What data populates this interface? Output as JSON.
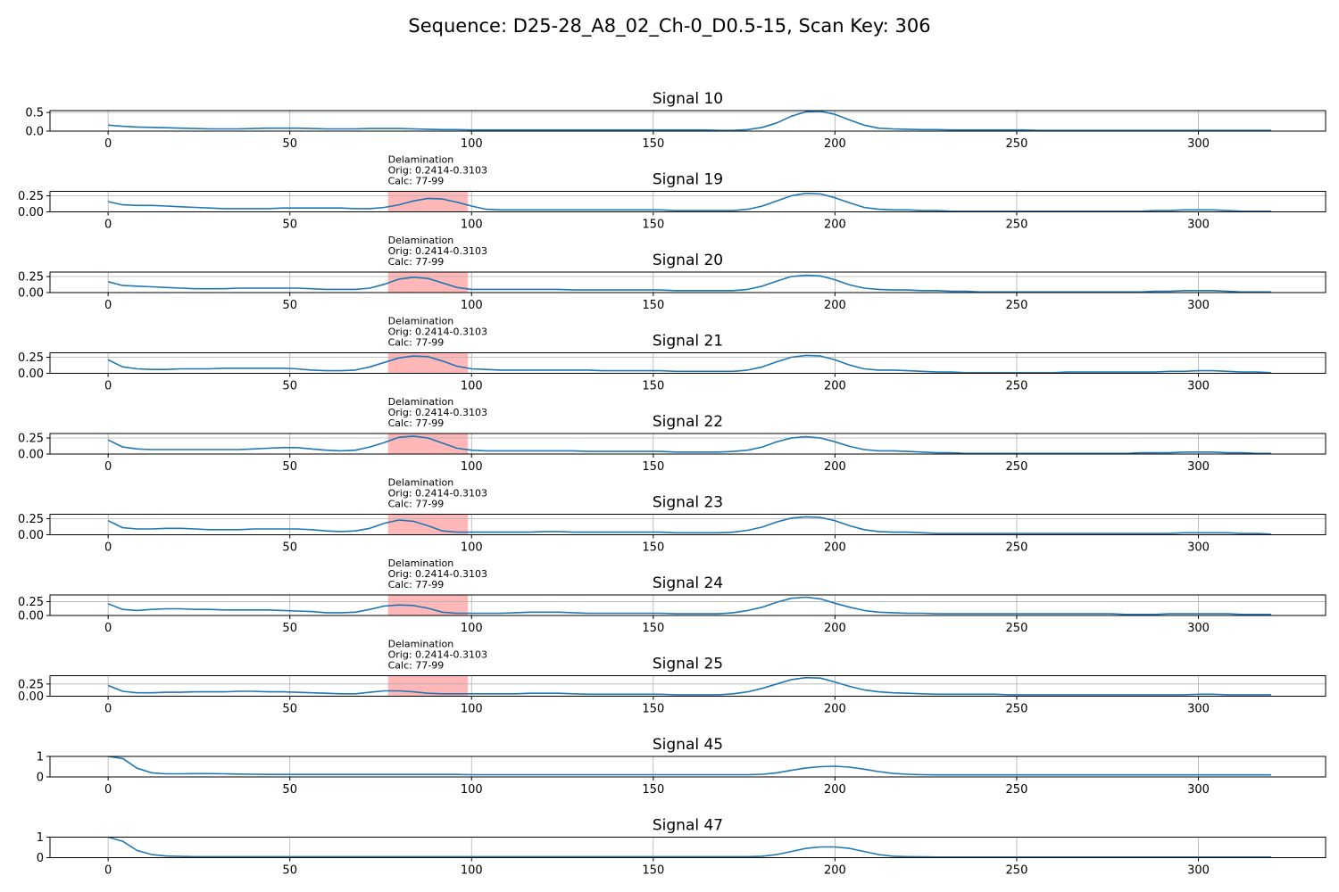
{
  "figure": {
    "title": "Sequence: D25-28_A8_02_Ch-0_D0.5-15, Scan Key: 306"
  },
  "colors": {
    "line": "#1f77b4",
    "highlight": "#ff9999",
    "grid": "#b0b0b0"
  },
  "chart_data": {
    "type": "line",
    "grid": true,
    "xlim": [
      -16,
      335
    ],
    "xticks": [
      0,
      50,
      100,
      150,
      200,
      250,
      300
    ],
    "x_sample_step": 4,
    "annotation": {
      "label_lines": [
        "Delamination",
        "Orig: 0.2414-0.3103",
        "Calc: 77-99"
      ],
      "x_range": [
        77,
        99
      ]
    },
    "subplots": [
      {
        "title": "Signal 10",
        "ylim": [
          0,
          0.55
        ],
        "yticks": [
          "0.5",
          "0.0"
        ],
        "ytick_values": [
          0.5,
          0
        ],
        "has_annotation": false,
        "y": [
          0.16,
          0.13,
          0.11,
          0.1,
          0.09,
          0.08,
          0.07,
          0.06,
          0.06,
          0.06,
          0.07,
          0.08,
          0.08,
          0.08,
          0.07,
          0.06,
          0.06,
          0.06,
          0.07,
          0.07,
          0.07,
          0.06,
          0.05,
          0.04,
          0.04,
          0.03,
          0.03,
          0.03,
          0.03,
          0.03,
          0.03,
          0.03,
          0.03,
          0.03,
          0.03,
          0.03,
          0.03,
          0.03,
          0.03,
          0.03,
          0.03,
          0.03,
          0.02,
          0.02,
          0.04,
          0.1,
          0.22,
          0.4,
          0.52,
          0.53,
          0.45,
          0.3,
          0.16,
          0.08,
          0.06,
          0.05,
          0.04,
          0.04,
          0.03,
          0.03,
          0.03,
          0.03,
          0.03,
          0.03,
          0.02,
          0.02,
          0.02,
          0.02,
          0.02,
          0.02,
          0.02,
          0.02,
          0.02,
          0.02,
          0.02,
          0.02,
          0.02,
          0.02,
          0.02,
          0.02,
          0.02
        ]
      },
      {
        "title": "Signal 19",
        "ylim": [
          0,
          0.32
        ],
        "yticks": [
          "0.25",
          "0.00"
        ],
        "ytick_values": [
          0.25,
          0
        ],
        "has_annotation": true,
        "y": [
          0.16,
          0.11,
          0.1,
          0.1,
          0.09,
          0.08,
          0.07,
          0.06,
          0.05,
          0.05,
          0.05,
          0.05,
          0.06,
          0.06,
          0.06,
          0.06,
          0.06,
          0.05,
          0.05,
          0.07,
          0.11,
          0.17,
          0.21,
          0.2,
          0.15,
          0.09,
          0.04,
          0.03,
          0.03,
          0.03,
          0.03,
          0.03,
          0.03,
          0.03,
          0.03,
          0.03,
          0.03,
          0.03,
          0.03,
          0.02,
          0.02,
          0.02,
          0.02,
          0.02,
          0.04,
          0.09,
          0.17,
          0.25,
          0.29,
          0.28,
          0.22,
          0.14,
          0.07,
          0.04,
          0.03,
          0.03,
          0.02,
          0.02,
          0.01,
          0.01,
          0.01,
          0.01,
          0.01,
          0.01,
          0.01,
          0.01,
          0.01,
          0.01,
          0.01,
          0.01,
          0.01,
          0.01,
          0.02,
          0.02,
          0.03,
          0.03,
          0.03,
          0.02,
          0.01,
          0.01,
          0.01
        ]
      },
      {
        "title": "Signal 20",
        "ylim": [
          0,
          0.32
        ],
        "yticks": [
          "0.25",
          "0.00"
        ],
        "ytick_values": [
          0.25,
          0
        ],
        "has_annotation": true,
        "y": [
          0.17,
          0.11,
          0.1,
          0.09,
          0.08,
          0.07,
          0.06,
          0.06,
          0.06,
          0.07,
          0.07,
          0.07,
          0.07,
          0.07,
          0.06,
          0.05,
          0.05,
          0.05,
          0.07,
          0.13,
          0.21,
          0.24,
          0.22,
          0.15,
          0.08,
          0.05,
          0.05,
          0.05,
          0.05,
          0.05,
          0.05,
          0.05,
          0.04,
          0.04,
          0.04,
          0.04,
          0.04,
          0.04,
          0.04,
          0.03,
          0.03,
          0.03,
          0.03,
          0.03,
          0.05,
          0.1,
          0.18,
          0.25,
          0.27,
          0.26,
          0.2,
          0.12,
          0.07,
          0.05,
          0.04,
          0.04,
          0.03,
          0.03,
          0.02,
          0.02,
          0.01,
          0.01,
          0.01,
          0.01,
          0.01,
          0.01,
          0.01,
          0.01,
          0.01,
          0.01,
          0.01,
          0.01,
          0.02,
          0.02,
          0.03,
          0.03,
          0.03,
          0.02,
          0.01,
          0.01,
          0.01
        ]
      },
      {
        "title": "Signal 21",
        "ylim": [
          0,
          0.32
        ],
        "yticks": [
          "0.25",
          "0.00"
        ],
        "ytick_values": [
          0.25,
          0
        ],
        "has_annotation": true,
        "y": [
          0.21,
          0.1,
          0.07,
          0.06,
          0.06,
          0.07,
          0.07,
          0.07,
          0.08,
          0.08,
          0.08,
          0.08,
          0.08,
          0.07,
          0.05,
          0.04,
          0.04,
          0.05,
          0.1,
          0.17,
          0.24,
          0.27,
          0.26,
          0.19,
          0.11,
          0.07,
          0.06,
          0.05,
          0.05,
          0.05,
          0.05,
          0.05,
          0.05,
          0.05,
          0.04,
          0.04,
          0.04,
          0.04,
          0.04,
          0.03,
          0.03,
          0.03,
          0.03,
          0.03,
          0.05,
          0.1,
          0.18,
          0.25,
          0.28,
          0.27,
          0.21,
          0.13,
          0.07,
          0.05,
          0.05,
          0.04,
          0.03,
          0.02,
          0.02,
          0.01,
          0.01,
          0.01,
          0.01,
          0.01,
          0.01,
          0.01,
          0.02,
          0.02,
          0.02,
          0.02,
          0.02,
          0.02,
          0.02,
          0.03,
          0.03,
          0.04,
          0.04,
          0.03,
          0.02,
          0.02,
          0.01
        ]
      },
      {
        "title": "Signal 22",
        "ylim": [
          0,
          0.32
        ],
        "yticks": [
          "0.25",
          "0.00"
        ],
        "ytick_values": [
          0.25,
          0
        ],
        "has_annotation": true,
        "y": [
          0.22,
          0.11,
          0.08,
          0.07,
          0.07,
          0.07,
          0.07,
          0.07,
          0.07,
          0.07,
          0.08,
          0.09,
          0.1,
          0.1,
          0.08,
          0.06,
          0.05,
          0.06,
          0.11,
          0.18,
          0.26,
          0.28,
          0.25,
          0.17,
          0.09,
          0.06,
          0.05,
          0.05,
          0.05,
          0.05,
          0.05,
          0.05,
          0.05,
          0.04,
          0.04,
          0.04,
          0.04,
          0.04,
          0.04,
          0.03,
          0.03,
          0.03,
          0.03,
          0.04,
          0.06,
          0.11,
          0.19,
          0.25,
          0.27,
          0.25,
          0.19,
          0.12,
          0.07,
          0.05,
          0.05,
          0.04,
          0.03,
          0.02,
          0.02,
          0.01,
          0.01,
          0.01,
          0.01,
          0.01,
          0.01,
          0.01,
          0.01,
          0.01,
          0.01,
          0.01,
          0.01,
          0.02,
          0.02,
          0.02,
          0.03,
          0.03,
          0.03,
          0.02,
          0.02,
          0.01,
          0.01
        ]
      },
      {
        "title": "Signal 23",
        "ylim": [
          0,
          0.32
        ],
        "yticks": [
          "0.25",
          "0.00"
        ],
        "ytick_values": [
          0.25,
          0
        ],
        "has_annotation": true,
        "y": [
          0.22,
          0.11,
          0.09,
          0.09,
          0.1,
          0.1,
          0.09,
          0.08,
          0.08,
          0.08,
          0.09,
          0.09,
          0.09,
          0.09,
          0.08,
          0.06,
          0.05,
          0.06,
          0.1,
          0.18,
          0.23,
          0.21,
          0.14,
          0.06,
          0.04,
          0.04,
          0.04,
          0.04,
          0.04,
          0.04,
          0.05,
          0.05,
          0.04,
          0.04,
          0.04,
          0.04,
          0.04,
          0.04,
          0.04,
          0.03,
          0.03,
          0.03,
          0.03,
          0.04,
          0.07,
          0.12,
          0.2,
          0.26,
          0.28,
          0.27,
          0.22,
          0.14,
          0.08,
          0.05,
          0.04,
          0.04,
          0.03,
          0.02,
          0.02,
          0.02,
          0.02,
          0.02,
          0.02,
          0.02,
          0.02,
          0.02,
          0.02,
          0.02,
          0.02,
          0.02,
          0.02,
          0.02,
          0.02,
          0.02,
          0.03,
          0.03,
          0.03,
          0.03,
          0.02,
          0.02,
          0.01
        ]
      },
      {
        "title": "Signal 24",
        "ylim": [
          0,
          0.37
        ],
        "yticks": [
          "0.25",
          "0.00"
        ],
        "ytick_values": [
          0.25,
          0
        ],
        "has_annotation": true,
        "y": [
          0.21,
          0.11,
          0.09,
          0.11,
          0.12,
          0.12,
          0.11,
          0.11,
          0.1,
          0.1,
          0.1,
          0.1,
          0.09,
          0.08,
          0.07,
          0.05,
          0.05,
          0.06,
          0.11,
          0.17,
          0.19,
          0.18,
          0.13,
          0.06,
          0.04,
          0.04,
          0.04,
          0.04,
          0.05,
          0.06,
          0.06,
          0.06,
          0.05,
          0.04,
          0.04,
          0.04,
          0.04,
          0.04,
          0.04,
          0.03,
          0.03,
          0.03,
          0.03,
          0.05,
          0.09,
          0.15,
          0.24,
          0.31,
          0.33,
          0.3,
          0.22,
          0.15,
          0.09,
          0.06,
          0.05,
          0.04,
          0.04,
          0.03,
          0.03,
          0.03,
          0.03,
          0.03,
          0.03,
          0.03,
          0.03,
          0.03,
          0.03,
          0.03,
          0.03,
          0.03,
          0.02,
          0.02,
          0.02,
          0.03,
          0.03,
          0.03,
          0.03,
          0.03,
          0.02,
          0.02,
          0.02
        ]
      },
      {
        "title": "Signal 25",
        "ylim": [
          0,
          0.42
        ],
        "yticks": [
          "0.25",
          "0.00"
        ],
        "ytick_values": [
          0.25,
          0
        ],
        "has_annotation": true,
        "y": [
          0.22,
          0.1,
          0.07,
          0.07,
          0.08,
          0.08,
          0.09,
          0.09,
          0.09,
          0.1,
          0.1,
          0.09,
          0.09,
          0.08,
          0.07,
          0.06,
          0.05,
          0.05,
          0.08,
          0.11,
          0.11,
          0.09,
          0.06,
          0.05,
          0.05,
          0.05,
          0.05,
          0.05,
          0.05,
          0.06,
          0.06,
          0.06,
          0.05,
          0.04,
          0.04,
          0.04,
          0.04,
          0.04,
          0.04,
          0.03,
          0.03,
          0.03,
          0.03,
          0.05,
          0.09,
          0.16,
          0.25,
          0.34,
          0.38,
          0.37,
          0.29,
          0.2,
          0.13,
          0.09,
          0.07,
          0.06,
          0.05,
          0.04,
          0.04,
          0.04,
          0.04,
          0.04,
          0.03,
          0.03,
          0.03,
          0.03,
          0.03,
          0.03,
          0.03,
          0.03,
          0.03,
          0.03,
          0.03,
          0.03,
          0.03,
          0.04,
          0.04,
          0.03,
          0.03,
          0.03,
          0.03
        ]
      },
      {
        "title": "Signal 45",
        "ylim": [
          0,
          1.0
        ],
        "yticks": [
          "1",
          "0"
        ],
        "ytick_values": [
          1,
          0
        ],
        "has_annotation": false,
        "y": [
          1.0,
          0.9,
          0.42,
          0.2,
          0.15,
          0.15,
          0.16,
          0.16,
          0.15,
          0.14,
          0.13,
          0.12,
          0.12,
          0.12,
          0.12,
          0.12,
          0.12,
          0.12,
          0.12,
          0.12,
          0.12,
          0.12,
          0.12,
          0.12,
          0.12,
          0.11,
          0.11,
          0.11,
          0.11,
          0.11,
          0.11,
          0.11,
          0.11,
          0.11,
          0.11,
          0.11,
          0.11,
          0.11,
          0.11,
          0.11,
          0.11,
          0.11,
          0.11,
          0.11,
          0.11,
          0.13,
          0.2,
          0.32,
          0.44,
          0.5,
          0.52,
          0.48,
          0.38,
          0.26,
          0.17,
          0.13,
          0.11,
          0.1,
          0.1,
          0.1,
          0.1,
          0.1,
          0.1,
          0.1,
          0.1,
          0.1,
          0.1,
          0.1,
          0.1,
          0.1,
          0.1,
          0.1,
          0.1,
          0.1,
          0.1,
          0.1,
          0.1,
          0.1,
          0.1,
          0.1,
          0.1
        ]
      },
      {
        "title": "Signal 47",
        "ylim": [
          0,
          1.0
        ],
        "yticks": [
          "1",
          "0"
        ],
        "ytick_values": [
          1,
          0
        ],
        "has_annotation": false,
        "y": [
          1.0,
          0.8,
          0.35,
          0.15,
          0.08,
          0.06,
          0.05,
          0.05,
          0.05,
          0.05,
          0.05,
          0.05,
          0.05,
          0.05,
          0.05,
          0.05,
          0.05,
          0.05,
          0.05,
          0.05,
          0.05,
          0.05,
          0.05,
          0.05,
          0.05,
          0.05,
          0.05,
          0.05,
          0.05,
          0.05,
          0.05,
          0.05,
          0.05,
          0.05,
          0.05,
          0.05,
          0.05,
          0.05,
          0.05,
          0.05,
          0.05,
          0.05,
          0.05,
          0.05,
          0.05,
          0.07,
          0.15,
          0.3,
          0.45,
          0.52,
          0.52,
          0.45,
          0.3,
          0.15,
          0.07,
          0.05,
          0.04,
          0.03,
          0.03,
          0.03,
          0.03,
          0.03,
          0.03,
          0.03,
          0.03,
          0.03,
          0.03,
          0.03,
          0.03,
          0.03,
          0.03,
          0.03,
          0.03,
          0.03,
          0.03,
          0.03,
          0.03,
          0.03,
          0.03,
          0.03,
          0.03
        ]
      }
    ]
  }
}
